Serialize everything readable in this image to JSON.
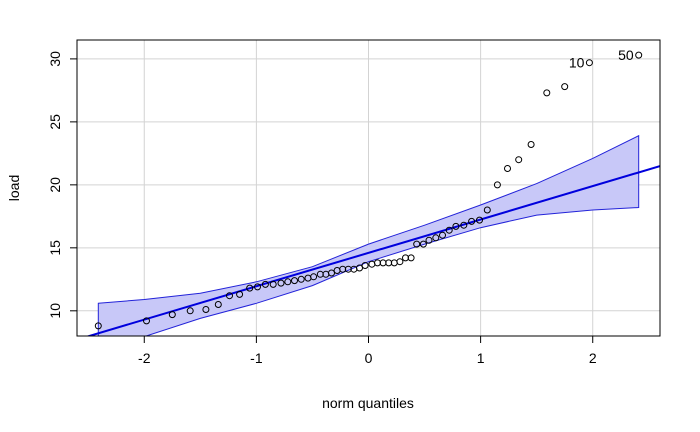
{
  "chart_data": {
    "type": "scatter",
    "subtype": "qq-plot",
    "title": "",
    "xlabel": "norm quantiles",
    "ylabel": "load",
    "xlim": [
      -2.6,
      2.6
    ],
    "ylim": [
      8,
      31.5
    ],
    "xticks": [
      -2,
      -1,
      0,
      1,
      2
    ],
    "yticks": [
      10,
      15,
      20,
      25,
      30
    ],
    "grid": true,
    "points": [
      {
        "x": -2.41,
        "y": 8.8
      },
      {
        "x": -1.98,
        "y": 9.2
      },
      {
        "x": -1.75,
        "y": 9.7
      },
      {
        "x": -1.59,
        "y": 10.0
      },
      {
        "x": -1.45,
        "y": 10.1
      },
      {
        "x": -1.34,
        "y": 10.5
      },
      {
        "x": -1.24,
        "y": 11.2
      },
      {
        "x": -1.15,
        "y": 11.3
      },
      {
        "x": -1.06,
        "y": 11.8
      },
      {
        "x": -0.99,
        "y": 11.9
      },
      {
        "x": -0.92,
        "y": 12.1
      },
      {
        "x": -0.85,
        "y": 12.1
      },
      {
        "x": -0.78,
        "y": 12.2
      },
      {
        "x": -0.72,
        "y": 12.3
      },
      {
        "x": -0.66,
        "y": 12.4
      },
      {
        "x": -0.6,
        "y": 12.5
      },
      {
        "x": -0.54,
        "y": 12.6
      },
      {
        "x": -0.49,
        "y": 12.7
      },
      {
        "x": -0.43,
        "y": 12.9
      },
      {
        "x": -0.38,
        "y": 12.9
      },
      {
        "x": -0.33,
        "y": 13.0
      },
      {
        "x": -0.28,
        "y": 13.2
      },
      {
        "x": -0.23,
        "y": 13.3
      },
      {
        "x": -0.18,
        "y": 13.3
      },
      {
        "x": -0.13,
        "y": 13.3
      },
      {
        "x": -0.08,
        "y": 13.4
      },
      {
        "x": -0.03,
        "y": 13.6
      },
      {
        "x": 0.03,
        "y": 13.7
      },
      {
        "x": 0.08,
        "y": 13.8
      },
      {
        "x": 0.13,
        "y": 13.8
      },
      {
        "x": 0.18,
        "y": 13.8
      },
      {
        "x": 0.23,
        "y": 13.8
      },
      {
        "x": 0.28,
        "y": 13.9
      },
      {
        "x": 0.33,
        "y": 14.2
      },
      {
        "x": 0.38,
        "y": 14.2
      },
      {
        "x": 0.43,
        "y": 15.3
      },
      {
        "x": 0.49,
        "y": 15.3
      },
      {
        "x": 0.54,
        "y": 15.6
      },
      {
        "x": 0.6,
        "y": 15.8
      },
      {
        "x": 0.66,
        "y": 16.0
      },
      {
        "x": 0.72,
        "y": 16.4
      },
      {
        "x": 0.78,
        "y": 16.7
      },
      {
        "x": 0.85,
        "y": 16.8
      },
      {
        "x": 0.92,
        "y": 17.1
      },
      {
        "x": 0.99,
        "y": 17.2
      },
      {
        "x": 1.06,
        "y": 18.0
      },
      {
        "x": 1.15,
        "y": 20.0
      },
      {
        "x": 1.24,
        "y": 21.3
      },
      {
        "x": 1.34,
        "y": 22.0
      },
      {
        "x": 1.45,
        "y": 23.2
      },
      {
        "x": 1.59,
        "y": 27.3
      },
      {
        "x": 1.75,
        "y": 27.8
      },
      {
        "x": 1.97,
        "y": 29.7,
        "label": "10"
      },
      {
        "x": 2.41,
        "y": 30.3,
        "label": "50"
      }
    ],
    "reference_line": {
      "intercept": 14.6,
      "slope": 2.65
    },
    "confidence_band": [
      {
        "x": -2.41,
        "lower": 7.0,
        "upper": 10.6
      },
      {
        "x": -2.0,
        "lower": 7.95,
        "upper": 10.9
      },
      {
        "x": -1.5,
        "lower": 9.4,
        "upper": 11.4
      },
      {
        "x": -1.0,
        "lower": 10.6,
        "upper": 12.3
      },
      {
        "x": -0.5,
        "lower": 12.0,
        "upper": 13.5
      },
      {
        "x": 0.0,
        "lower": 13.9,
        "upper": 15.3
      },
      {
        "x": 0.5,
        "lower": 15.3,
        "upper": 16.8
      },
      {
        "x": 1.0,
        "lower": 16.6,
        "upper": 18.4
      },
      {
        "x": 1.5,
        "lower": 17.6,
        "upper": 20.1
      },
      {
        "x": 2.0,
        "lower": 18.0,
        "upper": 22.1
      },
      {
        "x": 2.41,
        "lower": 18.2,
        "upper": 23.9
      }
    ],
    "colors": {
      "line": "#0000dd",
      "band_fill": "#c8c8f8",
      "band_edge": "#2323d9",
      "grid": "#d3d3d3",
      "point": "#000000"
    }
  }
}
